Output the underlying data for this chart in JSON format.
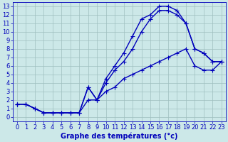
{
  "xlabel": "Graphe des températures (°c)",
  "bg_color": "#cce8e8",
  "line_color": "#0000bb",
  "grid_color": "#9fbfbf",
  "xlim": [
    -0.5,
    23.5
  ],
  "ylim": [
    -0.5,
    13.5
  ],
  "xticks": [
    0,
    1,
    2,
    3,
    4,
    5,
    6,
    7,
    8,
    9,
    10,
    11,
    12,
    13,
    14,
    15,
    16,
    17,
    18,
    19,
    20,
    21,
    22,
    23
  ],
  "yticks": [
    0,
    1,
    2,
    3,
    4,
    5,
    6,
    7,
    8,
    9,
    10,
    11,
    12,
    13
  ],
  "series": [
    {
      "x": [
        0,
        1,
        2,
        3,
        4,
        5,
        6,
        7,
        8,
        9,
        10,
        11,
        12,
        13,
        14,
        15,
        16,
        17,
        18,
        19,
        20,
        21,
        22,
        23
      ],
      "y": [
        1.5,
        1.5,
        1.0,
        0.5,
        0.5,
        0.5,
        0.5,
        0.5,
        3.5,
        2.0,
        4.5,
        6.0,
        7.5,
        9.5,
        11.5,
        12.0,
        13.0,
        13.0,
        12.5,
        11.0,
        8.0,
        7.5,
        6.5,
        6.5
      ]
    },
    {
      "x": [
        0,
        1,
        2,
        3,
        4,
        5,
        6,
        7,
        8,
        9,
        10,
        11,
        12,
        13,
        14,
        15,
        16,
        17,
        18,
        19,
        20,
        21,
        22,
        23
      ],
      "y": [
        1.5,
        1.5,
        1.0,
        0.5,
        0.5,
        0.5,
        0.5,
        0.5,
        3.5,
        2.0,
        4.0,
        5.5,
        6.5,
        8.0,
        10.0,
        11.5,
        12.5,
        12.5,
        12.0,
        11.0,
        8.0,
        7.5,
        6.5,
        6.5
      ]
    },
    {
      "x": [
        0,
        1,
        2,
        3,
        4,
        5,
        6,
        7,
        8,
        9,
        10,
        11,
        12,
        13,
        14,
        15,
        16,
        17,
        18,
        19,
        20,
        21,
        22,
        23
      ],
      "y": [
        1.5,
        1.5,
        1.0,
        0.5,
        0.5,
        0.5,
        0.5,
        0.5,
        2.0,
        2.0,
        3.0,
        3.5,
        4.5,
        5.0,
        5.5,
        6.0,
        6.5,
        7.0,
        7.5,
        8.0,
        6.0,
        5.5,
        5.5,
        6.5
      ]
    }
  ],
  "marker": "+",
  "marker_size": 4,
  "line_width": 1.0,
  "tick_fontsize": 6,
  "xlabel_fontsize": 7
}
